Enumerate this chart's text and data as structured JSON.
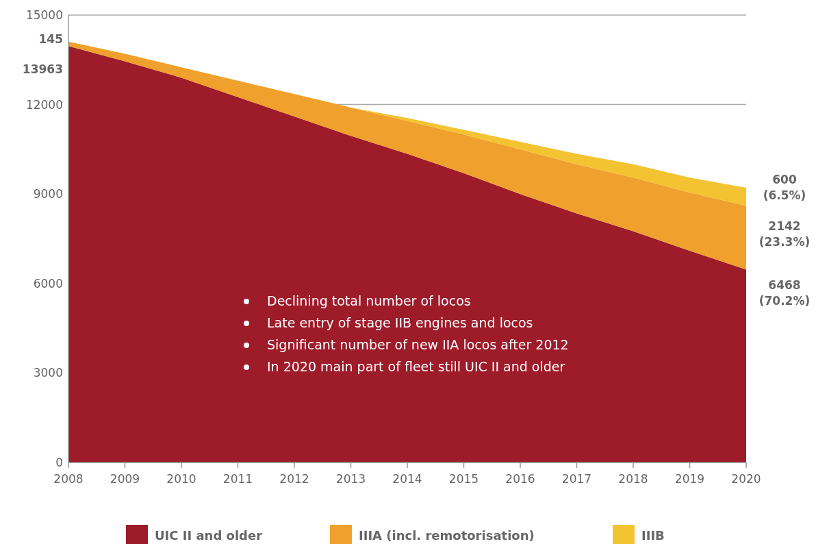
{
  "chart_data": {
    "type": "area",
    "stacked": true,
    "x": [
      2008,
      2009,
      2010,
      2011,
      2012,
      2013,
      2014,
      2015,
      2016,
      2017,
      2018,
      2019,
      2020
    ],
    "series": [
      {
        "name": "UIC II and older",
        "color": "#9e1b2a",
        "values": [
          13963,
          13450,
          12900,
          12250,
          11600,
          10950,
          10350,
          9700,
          9000,
          8350,
          7750,
          7100,
          6468
        ],
        "value_labels": [
          "13963",
          null,
          null,
          null,
          null,
          null,
          null,
          null,
          null,
          null,
          null,
          null,
          "6468 (70.2%)"
        ]
      },
      {
        "name": "IIIA (incl. remotorisation)",
        "color": "#f0a02c",
        "values": [
          145,
          250,
          350,
          550,
          750,
          950,
          1100,
          1300,
          1500,
          1650,
          1800,
          1950,
          2142
        ],
        "value_labels": [
          "145",
          null,
          null,
          null,
          null,
          null,
          null,
          null,
          null,
          null,
          null,
          null,
          "2142 (23.3%)"
        ]
      },
      {
        "name": "IIIB",
        "color": "#f3c332",
        "values": [
          0,
          0,
          0,
          0,
          0,
          0,
          100,
          150,
          250,
          350,
          450,
          500,
          600
        ],
        "value_labels": [
          null,
          null,
          null,
          null,
          null,
          null,
          null,
          null,
          null,
          null,
          null,
          null,
          "600 (6.5%)"
        ]
      }
    ],
    "xlim": [
      2008,
      2020
    ],
    "xticks": [
      2008,
      2009,
      2010,
      2011,
      2012,
      2013,
      2014,
      2015,
      2016,
      2017,
      2018,
      2019,
      2020
    ],
    "ylim": [
      0,
      15000
    ],
    "yticks": [
      0,
      3000,
      6000,
      9000,
      12000,
      15000
    ],
    "grid": "y",
    "legend": "bottom",
    "annotations": [
      "Declining total number of locos",
      "Late entry of stage IIB engines and locos",
      "Significant number of new IIA locos after 2012",
      "In 2020 main part of fleet still UIC II and older"
    ]
  }
}
